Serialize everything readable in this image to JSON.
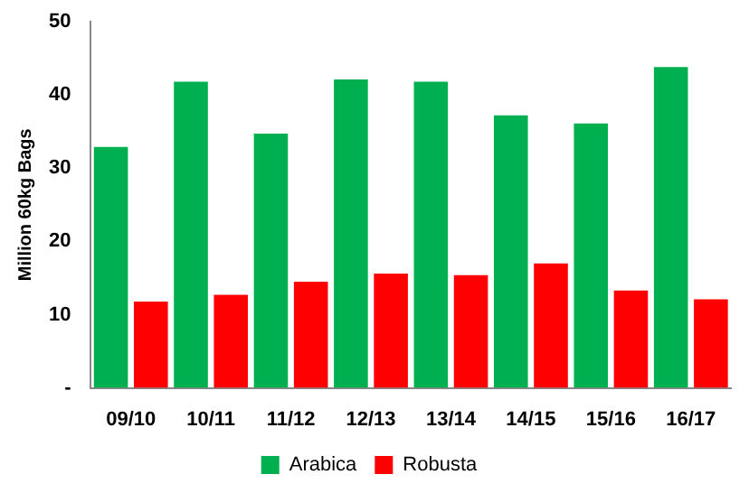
{
  "chart_data": {
    "type": "bar",
    "ylabel": "Million 60kg Bags",
    "categories": [
      "09/10",
      "10/11",
      "11/12",
      "12/13",
      "13/14",
      "14/15",
      "15/16",
      "16/17"
    ],
    "series": [
      {
        "name": "Arabica",
        "color": "#00b050",
        "values": [
          32.9,
          41.8,
          34.7,
          42.1,
          41.8,
          37.2,
          36.1,
          43.8
        ]
      },
      {
        "name": "Robusta",
        "color": "#ff0000",
        "values": [
          11.8,
          12.7,
          14.5,
          15.6,
          15.4,
          17.0,
          13.3,
          12.1
        ]
      }
    ],
    "ylim": [
      0,
      50
    ],
    "yticks": [
      {
        "value": 0,
        "label": "-"
      },
      10,
      20,
      30,
      40,
      50
    ],
    "grid": false,
    "legend": "bottom"
  }
}
